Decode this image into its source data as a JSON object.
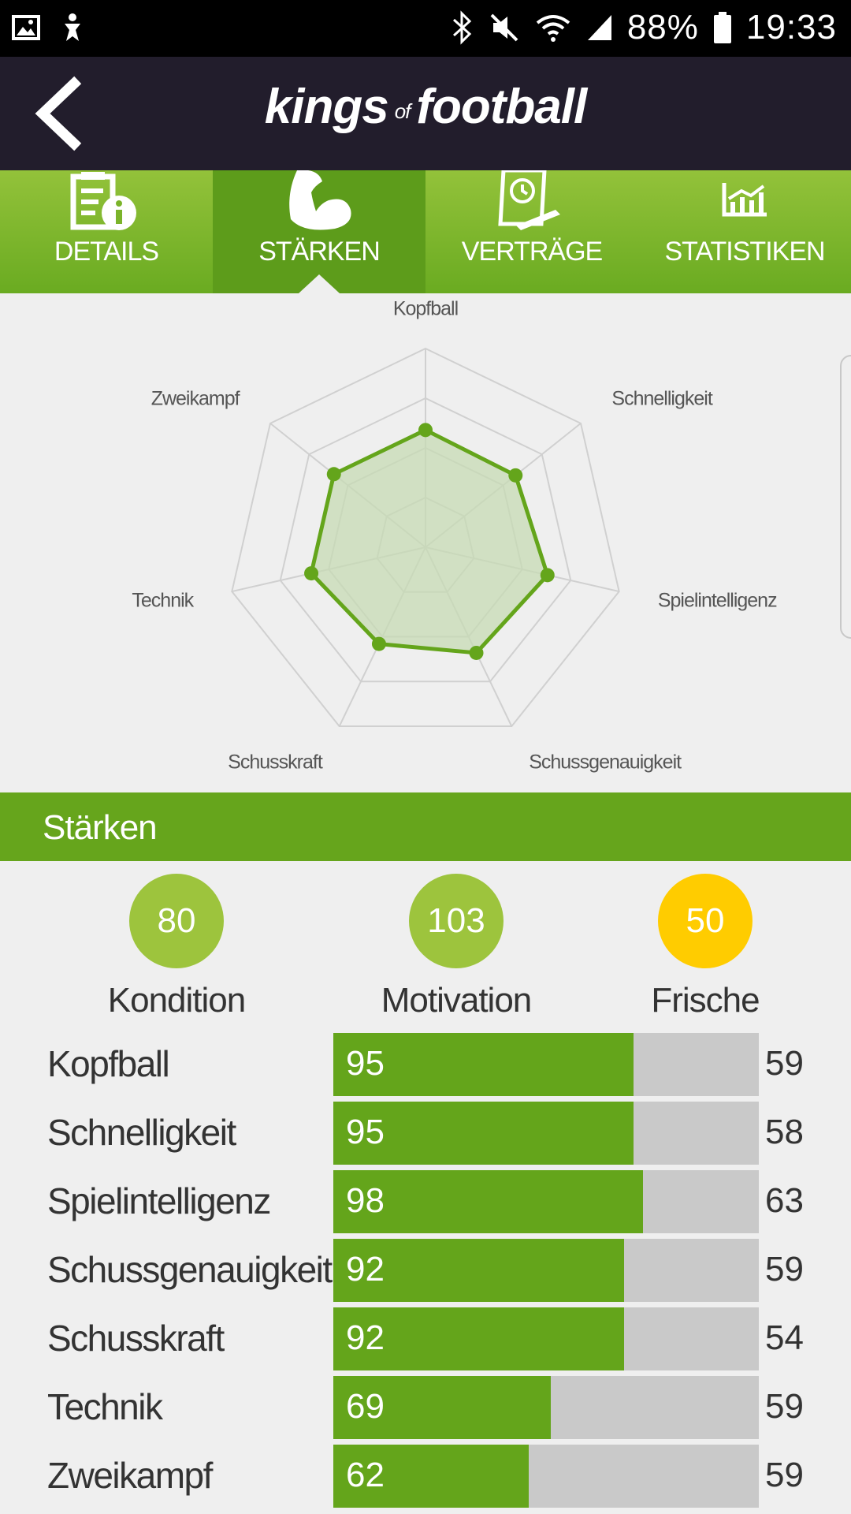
{
  "status_bar": {
    "battery": "88%",
    "time": "19:33"
  },
  "app": {
    "logo_main": "kings",
    "logo_of": "of",
    "logo_end": "football"
  },
  "tabs": [
    {
      "label": "DETAILS",
      "icon": "clipboard-info-icon",
      "active": false
    },
    {
      "label": "STÄRKEN",
      "icon": "flexed-arm-icon",
      "active": true
    },
    {
      "label": "VERTRÄGE",
      "icon": "contract-icon",
      "active": false
    },
    {
      "label": "STATISTIKEN",
      "icon": "chart-icon",
      "active": false
    }
  ],
  "radar": {
    "labels": [
      "Kopfball",
      "Schnelligkeit",
      "Spielintelligenz",
      "Schussgenauigkeit",
      "Schusskraft",
      "Technik",
      "Zweikampf"
    ],
    "values": [
      59,
      58,
      63,
      59,
      54,
      59,
      59
    ],
    "max": 100,
    "rings": 4,
    "colors": {
      "line": "#64a51b",
      "fill": "#c7dbb4",
      "grid": "#d0d0d0"
    }
  },
  "section_title": "Stärken",
  "circles": [
    {
      "value": "80",
      "label": "Kondition",
      "color": "#9dc43d"
    },
    {
      "value": "103",
      "label": "Motivation",
      "color": "#9dc43d"
    },
    {
      "value": "50",
      "label": "Frische",
      "color": "#ffcc00"
    }
  ],
  "attributes": [
    {
      "name": "Kopfball",
      "max": "95",
      "current": "59",
      "bar_fraction": 0.705
    },
    {
      "name": "Schnelligkeit",
      "max": "95",
      "current": "58",
      "bar_fraction": 0.705
    },
    {
      "name": "Spielintelligenz",
      "max": "98",
      "current": "63",
      "bar_fraction": 0.727
    },
    {
      "name": "Schussgenauigkeit",
      "max": "92",
      "current": "59",
      "bar_fraction": 0.683
    },
    {
      "name": "Schusskraft",
      "max": "92",
      "current": "54",
      "bar_fraction": 0.683
    },
    {
      "name": "Technik",
      "max": "69",
      "current": "59",
      "bar_fraction": 0.511
    },
    {
      "name": "Zweikampf",
      "max": "62",
      "current": "59",
      "bar_fraction": 0.46
    }
  ]
}
